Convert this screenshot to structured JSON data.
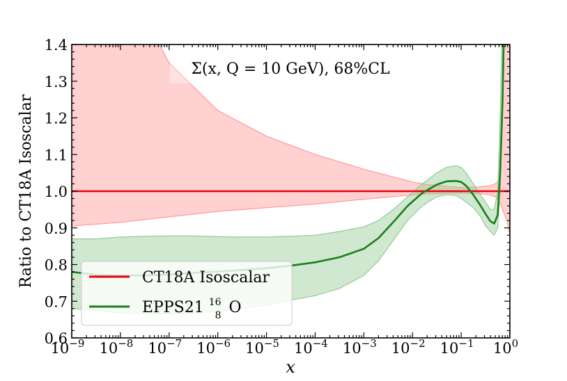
{
  "chart_data": {
    "type": "line",
    "title": "Σ(x, Q = 10 GeV),  68%CL",
    "xlabel": "x",
    "ylabel": "Ratio to CT18A Isoscalar",
    "xscale": "log",
    "xlim": [
      1e-09,
      1
    ],
    "ylim": [
      0.6,
      1.4
    ],
    "x_ticks": [
      {
        "label": "10",
        "exp": "−9",
        "value": -9
      },
      {
        "label": "10",
        "exp": "−8",
        "value": -8
      },
      {
        "label": "10",
        "exp": "−7",
        "value": -7
      },
      {
        "label": "10",
        "exp": "−6",
        "value": -6
      },
      {
        "label": "10",
        "exp": "−5",
        "value": -5
      },
      {
        "label": "10",
        "exp": "−4",
        "value": -4
      },
      {
        "label": "10",
        "exp": "−3",
        "value": -3
      },
      {
        "label": "10",
        "exp": "−2",
        "value": -2
      },
      {
        "label": "10",
        "exp": "−1",
        "value": -1
      },
      {
        "label": "10",
        "exp": "0",
        "value": 0
      }
    ],
    "y_ticks": [
      "0.6",
      "0.7",
      "0.8",
      "0.9",
      "1.0",
      "1.1",
      "1.2",
      "1.3",
      "1.4"
    ],
    "legend": {
      "position": "lower-left",
      "entries": [
        {
          "label": "CT18A Isoscalar",
          "color": "#e8000b"
        },
        {
          "label": "EPPS21 ",
          "sup": "16",
          "sub": "8",
          "tail": "O",
          "color": "#1a7f1a"
        }
      ]
    },
    "series": [
      {
        "name": "CT18A Isoscalar",
        "color": "#e8000b",
        "band_color": "#ff9999",
        "log10x": [
          -9,
          -8,
          -7,
          -6,
          -5,
          -4,
          -3,
          -2,
          -1.7,
          -1.3,
          -1,
          -0.6,
          -0.4,
          -0.3,
          -0.22,
          -0.18,
          -0.12,
          -0.06,
          0
        ],
        "central": [
          1.0,
          1.0,
          1.0,
          1.0,
          1.0,
          1.0,
          1.0,
          1.0,
          1.0,
          1.0,
          1.0,
          1.0,
          1.0,
          1.0,
          1.0,
          1.0,
          1.0,
          1.0,
          1.0
        ],
        "upper": [
          2.2,
          1.6,
          1.35,
          1.22,
          1.15,
          1.1,
          1.06,
          1.025,
          1.018,
          1.013,
          1.01,
          1.012,
          1.015,
          1.02,
          1.03,
          1.15,
          1.45,
          1.6,
          1.6
        ],
        "lower": [
          0.905,
          0.915,
          0.93,
          0.945,
          0.955,
          0.965,
          0.978,
          0.99,
          0.992,
          0.994,
          0.995,
          0.993,
          0.99,
          0.985,
          0.975,
          0.96,
          0.94,
          0.92,
          0.88
        ]
      },
      {
        "name": "EPPS21 16 8 O",
        "color": "#1a7f1a",
        "band_color": "#94cc94",
        "log10x": [
          -9,
          -8.5,
          -8,
          -7.5,
          -7,
          -6.5,
          -6,
          -5.5,
          -5,
          -4.5,
          -4,
          -3.5,
          -3,
          -2.7,
          -2.4,
          -2.1,
          -1.8,
          -1.5,
          -1.3,
          -1.1,
          -1,
          -0.9,
          -0.75,
          -0.6,
          -0.5,
          -0.4,
          -0.32,
          -0.25,
          -0.2,
          -0.15,
          -0.1,
          -0.07
        ],
        "central": [
          0.78,
          0.772,
          0.77,
          0.77,
          0.773,
          0.777,
          0.781,
          0.785,
          0.79,
          0.797,
          0.806,
          0.82,
          0.843,
          0.872,
          0.915,
          0.96,
          0.995,
          1.018,
          1.027,
          1.028,
          1.025,
          1.015,
          0.99,
          0.96,
          0.938,
          0.918,
          0.912,
          0.935,
          1.05,
          1.25,
          1.6,
          1.9
        ],
        "upper": [
          0.87,
          0.87,
          0.875,
          0.877,
          0.878,
          0.878,
          0.876,
          0.875,
          0.875,
          0.877,
          0.88,
          0.89,
          0.903,
          0.92,
          0.95,
          0.985,
          1.02,
          1.05,
          1.065,
          1.07,
          1.065,
          1.05,
          1.02,
          0.99,
          0.97,
          0.95,
          0.95,
          1.0,
          1.2,
          1.5,
          1.9,
          2.1
        ],
        "lower": [
          0.68,
          0.675,
          0.668,
          0.665,
          0.666,
          0.668,
          0.672,
          0.68,
          0.69,
          0.703,
          0.715,
          0.735,
          0.77,
          0.81,
          0.865,
          0.92,
          0.96,
          0.985,
          0.99,
          0.988,
          0.98,
          0.97,
          0.955,
          0.93,
          0.905,
          0.89,
          0.88,
          0.9,
          1.0,
          1.2,
          1.5,
          1.8
        ]
      }
    ]
  }
}
